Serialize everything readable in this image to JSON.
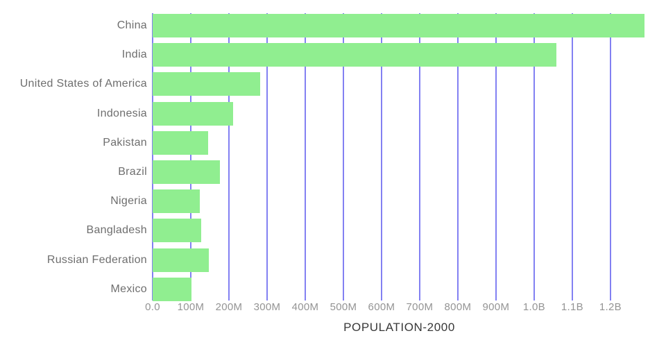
{
  "chart_data": {
    "type": "bar",
    "orientation": "horizontal",
    "title": "",
    "xlabel": "POPULATION-2000",
    "ylabel": "",
    "categories": [
      "China",
      "India",
      "United States of America",
      "Indonesia",
      "Pakistan",
      "Brazil",
      "Nigeria",
      "Bangladesh",
      "Russian Federation",
      "Mexico"
    ],
    "values": [
      1290000000,
      1058000000,
      282000000,
      211000000,
      146000000,
      176000000,
      123000000,
      128000000,
      148000000,
      101000000
    ],
    "xlim": [
      0,
      1293000000
    ],
    "xticks": [
      {
        "value": 0,
        "label": "0.0"
      },
      {
        "value": 100000000,
        "label": "100M"
      },
      {
        "value": 200000000,
        "label": "200M"
      },
      {
        "value": 300000000,
        "label": "300M"
      },
      {
        "value": 400000000,
        "label": "400M"
      },
      {
        "value": 500000000,
        "label": "500M"
      },
      {
        "value": 600000000,
        "label": "600M"
      },
      {
        "value": 700000000,
        "label": "700M"
      },
      {
        "value": 800000000,
        "label": "800M"
      },
      {
        "value": 900000000,
        "label": "900M"
      },
      {
        "value": 1000000000,
        "label": "1.0B"
      },
      {
        "value": 1100000000,
        "label": "1.1B"
      },
      {
        "value": 1200000000,
        "label": "1.2B"
      }
    ],
    "grid": true,
    "gridlines": "vertical",
    "legend": false
  },
  "style": {
    "background_color": "#ffffff",
    "bar_color": "#90ee90",
    "gridline_color": "#6c6af0",
    "category_label_color": "#6e6e6e",
    "tick_label_color": "#949494",
    "axis_title_color": "#383838"
  }
}
